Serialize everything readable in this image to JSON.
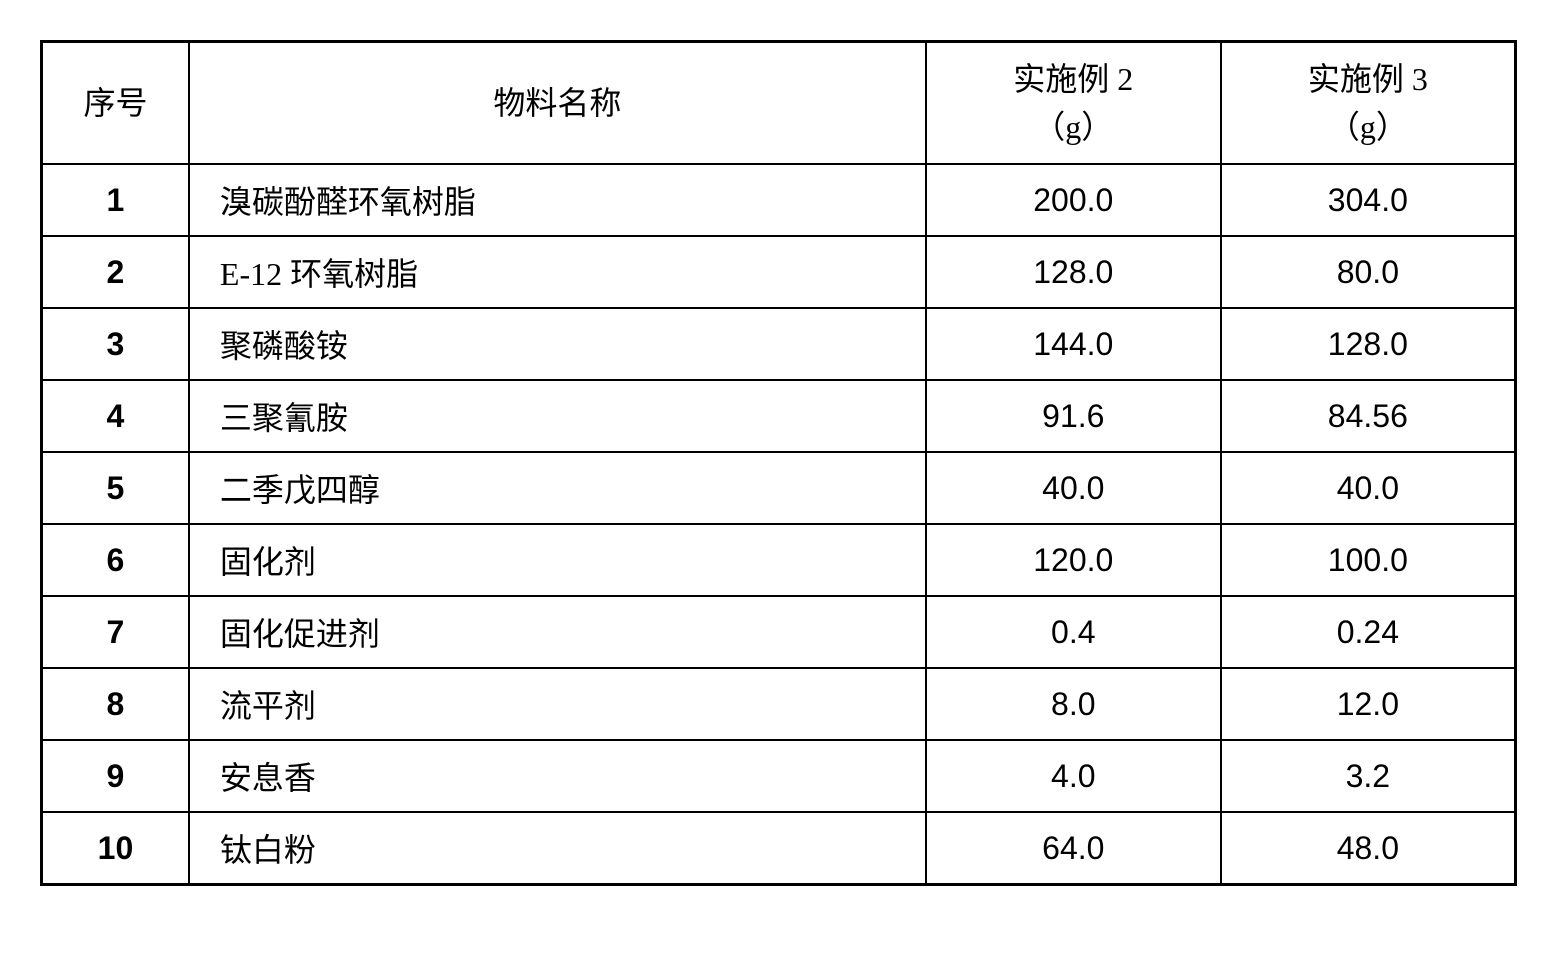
{
  "table": {
    "columns": [
      {
        "header_line1": "序号",
        "header_line2": ""
      },
      {
        "header_line1": "物料名称",
        "header_line2": ""
      },
      {
        "header_line1": "实施例 2",
        "header_line2": "（g）"
      },
      {
        "header_line1": "实施例 3",
        "header_line2": "（g）"
      }
    ],
    "rows": [
      {
        "index": "1",
        "name": "溴碳酚醛环氧树脂",
        "val1": "200.0",
        "val2": "304.0"
      },
      {
        "index": "2",
        "name": "E-12 环氧树脂",
        "val1": "128.0",
        "val2": "80.0"
      },
      {
        "index": "3",
        "name": "聚磷酸铵",
        "val1": "144.0",
        "val2": "128.0"
      },
      {
        "index": "4",
        "name": "三聚氰胺",
        "val1": "91.6",
        "val2": "84.56"
      },
      {
        "index": "5",
        "name": "二季戊四醇",
        "val1": "40.0",
        "val2": "40.0"
      },
      {
        "index": "6",
        "name": "固化剂",
        "val1": "120.0",
        "val2": "100.0"
      },
      {
        "index": "7",
        "name": "固化促进剂",
        "val1": "0.4",
        "val2": "0.24"
      },
      {
        "index": "8",
        "name": "流平剂",
        "val1": "8.0",
        "val2": "12.0"
      },
      {
        "index": "9",
        "name": "安息香",
        "val1": "4.0",
        "val2": "3.2"
      },
      {
        "index": "10",
        "name": "钛白粉",
        "val1": "64.0",
        "val2": "48.0"
      }
    ],
    "styling": {
      "border_color": "#000000",
      "border_width_outer": 3,
      "border_width_inner": 2,
      "background_color": "#ffffff",
      "text_color": "#000000",
      "font_size": 32,
      "header_font_family": "SimSun",
      "index_font_family": "Arial",
      "value_font_family": "Arial"
    }
  }
}
